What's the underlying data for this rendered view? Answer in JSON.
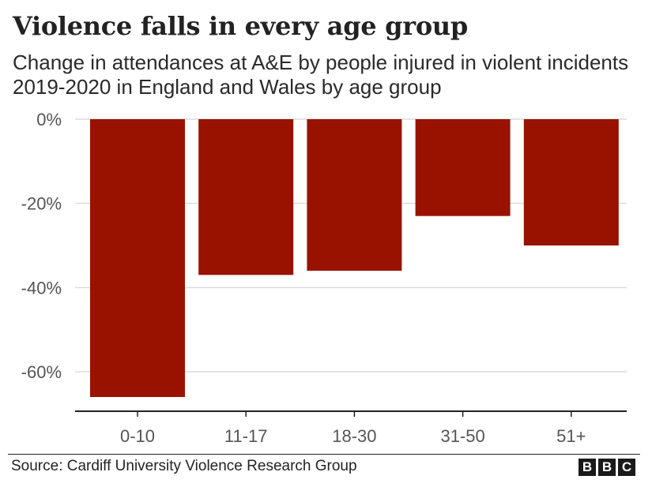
{
  "header": {
    "title": "Violence falls in every age group",
    "subtitle": "Change in attendances at A&E by people injured in violent incidents 2019-2020 in England and Wales by age group"
  },
  "footer": {
    "source": "Source: Cardiff University Violence Research Group",
    "logo_letters": [
      "B",
      "B",
      "C"
    ]
  },
  "colors": {
    "bar": "#991200",
    "grid": "#dcdcdc",
    "axis": "#222222"
  },
  "chart_data": {
    "type": "bar",
    "categories": [
      "0-10",
      "11-17",
      "18-30",
      "31-50",
      "51+"
    ],
    "values": [
      -66,
      -37,
      -36,
      -23,
      -30
    ],
    "ylim": [
      -69,
      0
    ],
    "yticks": [
      0,
      -20,
      -40,
      -60
    ],
    "ytick_labels": [
      "0%",
      "-20%",
      "-40%",
      "-60%"
    ],
    "grid": true
  }
}
